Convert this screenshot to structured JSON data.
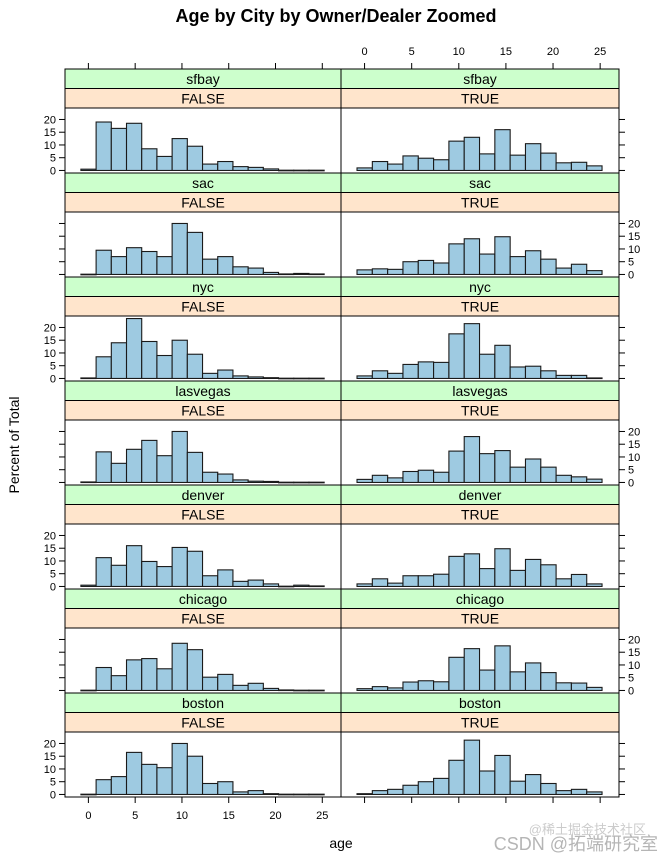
{
  "chart_data": {
    "type": "bar",
    "subtype": "histogram-trellis",
    "title": "Age by City by Owner/Dealer Zoomed",
    "xlabel": "age",
    "ylabel": "Percent of Total",
    "xlim": [
      -2.5,
      27
    ],
    "ylim": [
      -1,
      24.5
    ],
    "x_ticks": [
      0,
      5,
      10,
      15,
      20,
      25
    ],
    "y_ticks": [
      0,
      5,
      10,
      15,
      20
    ],
    "bin_start": -0.8,
    "bin_width": 1.625,
    "columns": [
      "FALSE",
      "TRUE"
    ],
    "colors": {
      "bar_fill": "#9ecae1",
      "bar_stroke": "#1a1a1a",
      "city_strip": "#ccffcc",
      "owner_strip": "#ffe5cc",
      "frame": "#000000"
    },
    "panels": [
      {
        "city": "sfbay",
        "owner": "FALSE",
        "values": [
          0.5,
          19,
          16.5,
          18.5,
          8.5,
          5.5,
          12.5,
          9.5,
          2.5,
          3.5,
          1.5,
          1.2,
          0.6,
          0.1,
          0.1,
          0.1
        ]
      },
      {
        "city": "sfbay",
        "owner": "TRUE",
        "values": [
          1,
          3.5,
          2.5,
          5.7,
          4.8,
          4.2,
          11.5,
          13,
          6.5,
          16,
          6,
          10.5,
          6.8,
          3,
          3.2,
          1.8
        ]
      },
      {
        "city": "sac",
        "owner": "FALSE",
        "values": [
          0.1,
          9.5,
          7,
          10.5,
          9,
          7,
          20,
          16.5,
          6,
          7,
          3,
          2.5,
          0.8,
          0.2,
          0.4,
          0.2
        ]
      },
      {
        "city": "sac",
        "owner": "TRUE",
        "values": [
          1.8,
          2.2,
          2,
          5,
          5.5,
          4.5,
          12,
          14,
          8,
          14.8,
          7,
          9.3,
          6,
          2.5,
          4,
          1.5
        ]
      },
      {
        "city": "nyc",
        "owner": "FALSE",
        "values": [
          0.2,
          8.5,
          14,
          23.5,
          14.5,
          9,
          15,
          9.5,
          2,
          3.3,
          1,
          0.6,
          0.3,
          0.1,
          0.1,
          0.1
        ]
      },
      {
        "city": "nyc",
        "owner": "TRUE",
        "values": [
          1,
          3,
          2,
          5.5,
          6.5,
          6.3,
          17.5,
          21.5,
          9.5,
          13,
          4.5,
          4.8,
          3,
          1.2,
          1.2,
          0.2
        ]
      },
      {
        "city": "lasvegas",
        "owner": "FALSE",
        "values": [
          0.2,
          12,
          7.5,
          13,
          16.5,
          10.5,
          20,
          11.8,
          4,
          3.3,
          1,
          0.5,
          0.4,
          0.1,
          0.1,
          0.1
        ]
      },
      {
        "city": "lasvegas",
        "owner": "TRUE",
        "values": [
          1.2,
          2.8,
          1.8,
          4.3,
          4.8,
          4,
          12.3,
          18,
          11.3,
          12.5,
          6,
          9.2,
          6,
          2.8,
          2.2,
          1.3
        ]
      },
      {
        "city": "denver",
        "owner": "FALSE",
        "values": [
          0.5,
          11.3,
          8.3,
          16,
          9.8,
          7.8,
          15.3,
          13.8,
          4.2,
          6.5,
          2,
          2.5,
          1,
          0.1,
          0.5,
          0.2
        ]
      },
      {
        "city": "denver",
        "owner": "TRUE",
        "values": [
          1,
          3,
          1.3,
          4.2,
          4.2,
          4.8,
          11.8,
          12.8,
          7,
          14.8,
          6.3,
          10.6,
          8.5,
          3,
          4.7,
          1
        ]
      },
      {
        "city": "chicago",
        "owner": "FALSE",
        "values": [
          0.1,
          9,
          5.8,
          12,
          12.5,
          8.5,
          18.5,
          16,
          5.2,
          6.3,
          2,
          2.8,
          0.8,
          0.2,
          0.1,
          0.1
        ]
      },
      {
        "city": "chicago",
        "owner": "TRUE",
        "values": [
          0.7,
          1.5,
          1,
          3.3,
          3.8,
          3.4,
          13,
          16.4,
          8,
          17.5,
          7.3,
          10.8,
          7,
          3,
          2.9,
          1.2
        ]
      },
      {
        "city": "boston",
        "owner": "FALSE",
        "values": [
          0.1,
          5.8,
          7,
          16.5,
          11.8,
          10.5,
          20,
          15,
          4.3,
          5,
          1,
          1.5,
          0.3,
          0.1,
          0.1,
          0.1
        ]
      },
      {
        "city": "boston",
        "owner": "TRUE",
        "values": [
          0.3,
          1.5,
          2,
          3.6,
          5,
          6.3,
          13.4,
          21.3,
          9.2,
          15.3,
          5.2,
          7.8,
          4.3,
          1.5,
          2,
          1
        ]
      }
    ]
  },
  "watermark": {
    "line1": "@稀土掘金技术社区",
    "line2": "CSDN @拓端研究室"
  }
}
